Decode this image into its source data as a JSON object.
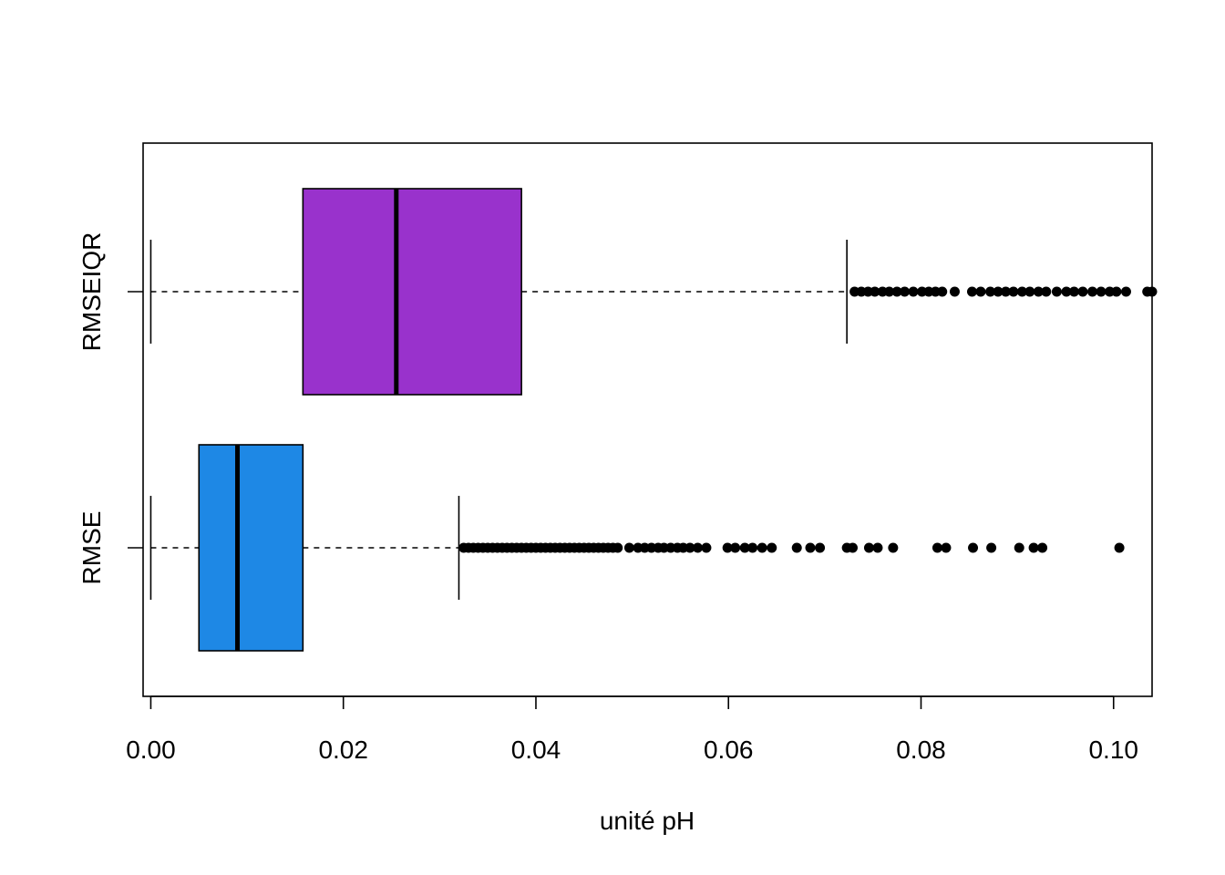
{
  "chart_data": {
    "type": "boxplot",
    "orientation": "horizontal",
    "title": "",
    "xlabel": "unité pH",
    "ylabel": "",
    "xlim": [
      -0.0008,
      0.104
    ],
    "x_ticks": [
      0.0,
      0.02,
      0.04,
      0.06,
      0.08,
      0.1
    ],
    "x_tick_labels": [
      "0.00",
      "0.02",
      "0.04",
      "0.06",
      "0.08",
      "0.10"
    ],
    "categories": [
      "RMSE",
      "RMSEIQR"
    ],
    "grid": false,
    "legend": "none",
    "series": [
      {
        "category": "RMSE",
        "color": "#1E88E5",
        "whisker_low": 0.0,
        "q1": 0.005,
        "median": 0.009,
        "q3": 0.0158,
        "whisker_high": 0.032,
        "outliers": [
          0.0325,
          0.033,
          0.0335,
          0.034,
          0.0345,
          0.035,
          0.0355,
          0.036,
          0.0365,
          0.037,
          0.0375,
          0.038,
          0.0385,
          0.039,
          0.0395,
          0.04,
          0.0405,
          0.041,
          0.0415,
          0.042,
          0.0425,
          0.043,
          0.0435,
          0.044,
          0.0445,
          0.045,
          0.0455,
          0.046,
          0.0465,
          0.047,
          0.0475,
          0.048,
          0.0485,
          0.0497,
          0.0506,
          0.0513,
          0.052,
          0.0527,
          0.0533,
          0.054,
          0.0547,
          0.0553,
          0.056,
          0.0568,
          0.0577,
          0.0599,
          0.0607,
          0.0617,
          0.0625,
          0.0635,
          0.0645,
          0.0671,
          0.0685,
          0.0695,
          0.0723,
          0.0729,
          0.0746,
          0.0755,
          0.0771,
          0.0817,
          0.0826,
          0.0854,
          0.0873,
          0.0902,
          0.0917,
          0.0926,
          0.1006
        ]
      },
      {
        "category": "RMSEIQR",
        "color": "#9932CC",
        "whisker_low": 0.0,
        "q1": 0.0158,
        "median": 0.0255,
        "q3": 0.0385,
        "whisker_high": 0.0723,
        "outliers": [
          0.0731,
          0.0738,
          0.0745,
          0.0752,
          0.076,
          0.0767,
          0.0775,
          0.0783,
          0.0792,
          0.0801,
          0.0808,
          0.0815,
          0.0822,
          0.0835,
          0.0853,
          0.0862,
          0.0872,
          0.088,
          0.0888,
          0.0896,
          0.0905,
          0.0913,
          0.0922,
          0.093,
          0.0941,
          0.0951,
          0.0959,
          0.0968,
          0.0978,
          0.0987,
          0.0996,
          0.1003,
          0.1013,
          0.1035,
          0.104
        ]
      }
    ]
  }
}
